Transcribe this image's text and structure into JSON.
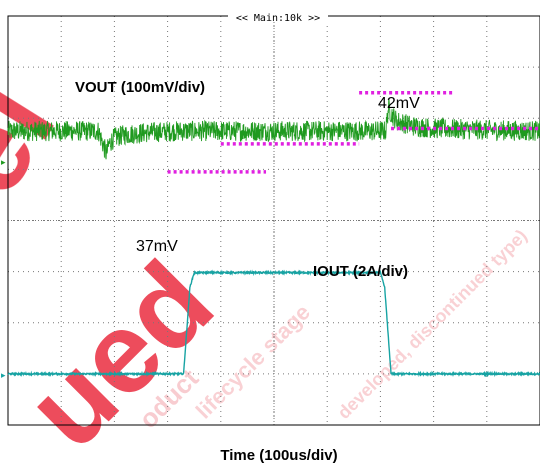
{
  "chart_data": {
    "type": "line",
    "title": "",
    "xlabel": "Time (100us/div)",
    "ylabel": "",
    "grid": true,
    "x_divisions": 10,
    "y_divisions": 8,
    "header_label": "<< Main:10k >>",
    "series": [
      {
        "name": "VOUT (100mV/div)",
        "color": "#1f9a1f",
        "x_div": [
          0,
          1.7,
          1.75,
          1.8,
          1.85,
          1.9,
          2.0,
          2.2,
          2.6,
          3.2,
          4.0,
          5.0,
          6.0,
          7.0,
          7.1,
          7.15,
          7.2,
          7.3,
          7.6,
          8.0,
          9.0,
          10.0
        ],
        "y_div": [
          5.75,
          5.75,
          5.6,
          5.45,
          5.3,
          5.5,
          5.62,
          5.68,
          5.72,
          5.75,
          5.75,
          5.75,
          5.75,
          5.75,
          5.75,
          6.2,
          6.1,
          5.95,
          5.85,
          5.8,
          5.77,
          5.75
        ],
        "noise_div": 0.2
      },
      {
        "name": "IOUT (2A/div)",
        "color": "#17a3a3",
        "x_div": [
          0,
          3.3,
          3.42,
          3.5,
          7.0,
          7.08,
          7.2,
          10.0
        ],
        "y_div": [
          1.0,
          1.0,
          2.7,
          2.98,
          2.98,
          2.7,
          1.0,
          1.0
        ],
        "noise_div": 0.015
      }
    ],
    "annotations": [
      {
        "text": "42mV",
        "type": "marker",
        "color": "#e020e0"
      },
      {
        "text": "37mV",
        "type": "marker",
        "color": "#e020e0"
      }
    ]
  },
  "markers": {
    "color": "#e020e0",
    "lines": [
      {
        "x0_div": 6.6,
        "x1_div": 8.4,
        "y_div": 6.5
      },
      {
        "x0_div": 7.2,
        "x1_div": 10.0,
        "y_div": 5.8
      },
      {
        "x0_div": 4.0,
        "x1_div": 6.6,
        "y_div": 5.5
      },
      {
        "x0_div": 3.0,
        "x1_div": 4.85,
        "y_div": 4.95
      }
    ]
  },
  "watermark": {
    "lines": [
      "lifecycle stage",
      "developed, discontinued type)",
      "ued",
      "oduct",
      "sel"
    ],
    "color_dark": "#e8152a",
    "color_light": "#f2a0a8"
  }
}
